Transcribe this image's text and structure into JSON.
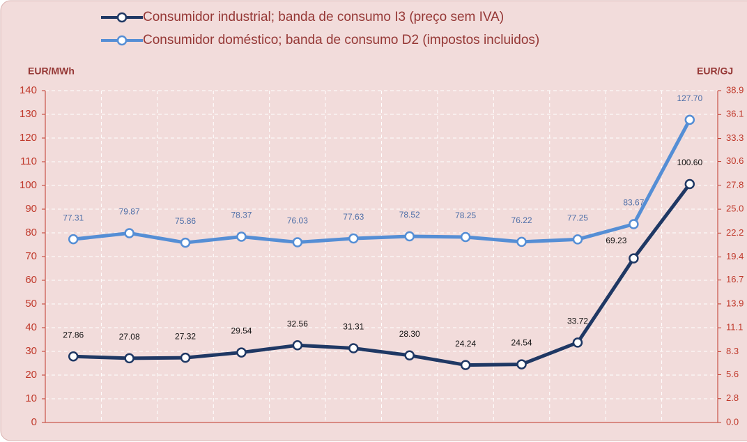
{
  "chart_data": {
    "type": "line",
    "series": [
      {
        "name": "Consumidor industrial; banda de consumo I3 (preço sem IVA)",
        "color": "#1f3864",
        "values": [
          27.86,
          27.08,
          27.32,
          29.54,
          32.56,
          31.31,
          28.3,
          24.24,
          24.54,
          33.72,
          69.23,
          100.6
        ],
        "value_labels": [
          "27.86",
          "27.08",
          "27.32",
          "29.54",
          "32.56",
          "31.31",
          "28.30",
          "24.24",
          "24.54",
          "33.72",
          "69.23",
          "100.60"
        ]
      },
      {
        "name": "Consumidor doméstico; banda de consumo D2 (impostos incluidos)",
        "color": "#558ed5",
        "values": [
          77.31,
          79.87,
          75.86,
          78.37,
          76.03,
          77.63,
          78.52,
          78.25,
          76.22,
          77.25,
          83.67,
          127.7
        ],
        "value_labels": [
          "77.31",
          "79.87",
          "75.86",
          "78.37",
          "76.03",
          "77.63",
          "78.52",
          "78.25",
          "76.22",
          "77.25",
          "83.67",
          "127.70"
        ]
      }
    ],
    "ylabel": "EUR/MWh",
    "y2label": "EUR/GJ",
    "ylim": [
      0,
      140
    ],
    "yticks": [
      0,
      10,
      20,
      30,
      40,
      50,
      60,
      70,
      80,
      90,
      100,
      110,
      120,
      130,
      140
    ],
    "y2lim": [
      0,
      38.9
    ],
    "y2ticks": [
      {
        "value": 0,
        "label": "0.0"
      },
      2.8,
      5.6,
      8.3,
      11.1,
      13.9,
      16.7,
      19.4,
      22.2,
      {
        "value": 25,
        "label": "25.0"
      },
      27.8,
      30.6,
      33.3,
      36.1,
      38.9
    ],
    "grid": true,
    "legend": "top"
  }
}
